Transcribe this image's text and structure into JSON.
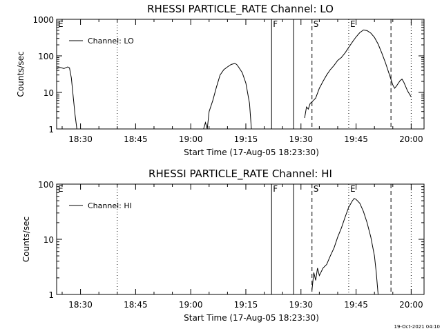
{
  "timestamp": "19-Oct-2021 04:10",
  "chart_data": [
    {
      "type": "line",
      "title": "RHESSI PARTICLE_RATE Channel: LO",
      "xlabel": "Start Time (17-Aug-05 18:23:30)",
      "ylabel": "Counts/sec",
      "yscale": "log",
      "xlim": [
        "18:23:30",
        "20:03:30"
      ],
      "ylim": [
        1,
        1000
      ],
      "xticks": [
        "18:30",
        "18:45",
        "19:00",
        "19:15",
        "19:30",
        "19:45",
        "20:00"
      ],
      "yticks": [
        "1",
        "10",
        "100",
        "1000"
      ],
      "legend": {
        "label": "Channel: LO",
        "position": "top-left"
      },
      "series": [
        {
          "name": "Channel: LO",
          "segments": [
            [
              [
                "18:23:30",
                45
              ],
              [
                "18:24:30",
                48
              ],
              [
                "18:25:30",
                45
              ],
              [
                "18:26:30",
                50
              ],
              [
                "18:27:00",
                47
              ],
              [
                "18:27:30",
                25
              ],
              [
                "18:28:00",
                8
              ],
              [
                "18:28:30",
                2.5
              ],
              [
                "18:29:00",
                1
              ]
            ],
            [
              [
                "19:03:30",
                1
              ],
              [
                "19:04:00",
                1.5
              ],
              [
                "19:04:30",
                1
              ],
              [
                "19:05:00",
                3
              ],
              [
                "19:06:00",
                6
              ],
              [
                "19:07:00",
                14
              ],
              [
                "19:08:00",
                30
              ],
              [
                "19:09:00",
                42
              ],
              [
                "19:10:00",
                50
              ],
              [
                "19:11:00",
                58
              ],
              [
                "19:12:00",
                62
              ],
              [
                "19:12:30",
                58
              ],
              [
                "19:13:00",
                50
              ],
              [
                "19:14:00",
                35
              ],
              [
                "19:15:00",
                18
              ],
              [
                "19:16:00",
                5
              ],
              [
                "19:16:30",
                1
              ]
            ],
            [
              [
                "19:31:00",
                2
              ],
              [
                "19:31:30",
                4
              ],
              [
                "19:32:00",
                3.5
              ],
              [
                "19:32:30",
                5
              ],
              [
                "19:33:00",
                5.5
              ],
              [
                "19:34:00",
                7
              ],
              [
                "19:35:00",
                13
              ],
              [
                "19:36:00",
                20
              ],
              [
                "19:37:00",
                30
              ],
              [
                "19:38:00",
                42
              ],
              [
                "19:39:00",
                55
              ],
              [
                "19:40:00",
                75
              ],
              [
                "19:41:00",
                90
              ],
              [
                "19:42:00",
                120
              ],
              [
                "19:43:00",
                170
              ],
              [
                "19:44:00",
                240
              ],
              [
                "19:45:00",
                330
              ],
              [
                "19:46:00",
                430
              ],
              [
                "19:47:00",
                510
              ],
              [
                "19:48:00",
                490
              ],
              [
                "19:49:00",
                420
              ],
              [
                "19:50:00",
                320
              ],
              [
                "19:51:00",
                210
              ],
              [
                "19:52:00",
                120
              ],
              [
                "19:53:00",
                65
              ],
              [
                "19:54:00",
                32
              ],
              [
                "19:55:00",
                16
              ],
              [
                "19:55:30",
                13
              ],
              [
                "19:56:00",
                15
              ],
              [
                "19:57:00",
                21
              ],
              [
                "19:57:30",
                23
              ],
              [
                "19:58:00",
                19
              ],
              [
                "19:59:00",
                11
              ],
              [
                "20:00:00",
                7.5
              ]
            ]
          ]
        }
      ],
      "markers": [
        {
          "label": "E",
          "time": "18:23:30",
          "style": "solid"
        },
        {
          "label": "F",
          "time": "19:22:00",
          "style": "solid"
        },
        {
          "label": "",
          "time": "19:28:00",
          "style": "solid"
        },
        {
          "label": "S",
          "time": "19:33:00",
          "style": "dashed"
        },
        {
          "label": "E",
          "time": "19:43:00",
          "style": "dotted"
        },
        {
          "label": "",
          "time": "19:54:30",
          "style": "dashed"
        },
        {
          "label": "",
          "time": "20:00:00",
          "style": "dotted"
        },
        {
          "label": "",
          "time": "18:40:00",
          "style": "dotted"
        }
      ]
    },
    {
      "type": "line",
      "title": "RHESSI PARTICLE_RATE Channel: HI",
      "xlabel": "Start Time (17-Aug-05 18:23:30)",
      "ylabel": "Counts/sec",
      "yscale": "log",
      "xlim": [
        "18:23:30",
        "20:03:30"
      ],
      "ylim": [
        1,
        100
      ],
      "xticks": [
        "18:30",
        "18:45",
        "19:00",
        "19:15",
        "19:30",
        "19:45",
        "20:00"
      ],
      "yticks": [
        "1",
        "10",
        "100"
      ],
      "legend": {
        "label": "Channel: HI",
        "position": "top-left"
      },
      "series": [
        {
          "name": "Channel: HI",
          "segments": [
            [
              [
                "19:33:00",
                1.2
              ],
              [
                "19:33:30",
                2.5
              ],
              [
                "19:34:00",
                1.8
              ],
              [
                "19:34:30",
                3
              ],
              [
                "19:35:00",
                2.2
              ],
              [
                "19:36:00",
                3
              ],
              [
                "19:37:00",
                3.5
              ],
              [
                "19:38:00",
                5
              ],
              [
                "19:39:00",
                7
              ],
              [
                "19:40:00",
                11
              ],
              [
                "19:41:00",
                16
              ],
              [
                "19:42:00",
                25
              ],
              [
                "19:43:00",
                38
              ],
              [
                "19:44:00",
                50
              ],
              [
                "19:44:30",
                55
              ],
              [
                "19:45:00",
                53
              ],
              [
                "19:46:00",
                45
              ],
              [
                "19:47:00",
                32
              ],
              [
                "19:48:00",
                20
              ],
              [
                "19:49:00",
                11
              ],
              [
                "19:50:00",
                5
              ],
              [
                "19:50:30",
                2.5
              ],
              [
                "19:51:00",
                1
              ]
            ]
          ]
        }
      ],
      "markers": [
        {
          "label": "E",
          "time": "18:23:30",
          "style": "solid"
        },
        {
          "label": "F",
          "time": "19:22:00",
          "style": "solid"
        },
        {
          "label": "",
          "time": "19:28:00",
          "style": "solid"
        },
        {
          "label": "S",
          "time": "19:33:00",
          "style": "dashed"
        },
        {
          "label": "E",
          "time": "19:43:00",
          "style": "dotted"
        },
        {
          "label": "",
          "time": "19:54:30",
          "style": "dashed"
        },
        {
          "label": "",
          "time": "20:00:00",
          "style": "dotted"
        },
        {
          "label": "",
          "time": "18:40:00",
          "style": "dotted"
        }
      ]
    }
  ]
}
